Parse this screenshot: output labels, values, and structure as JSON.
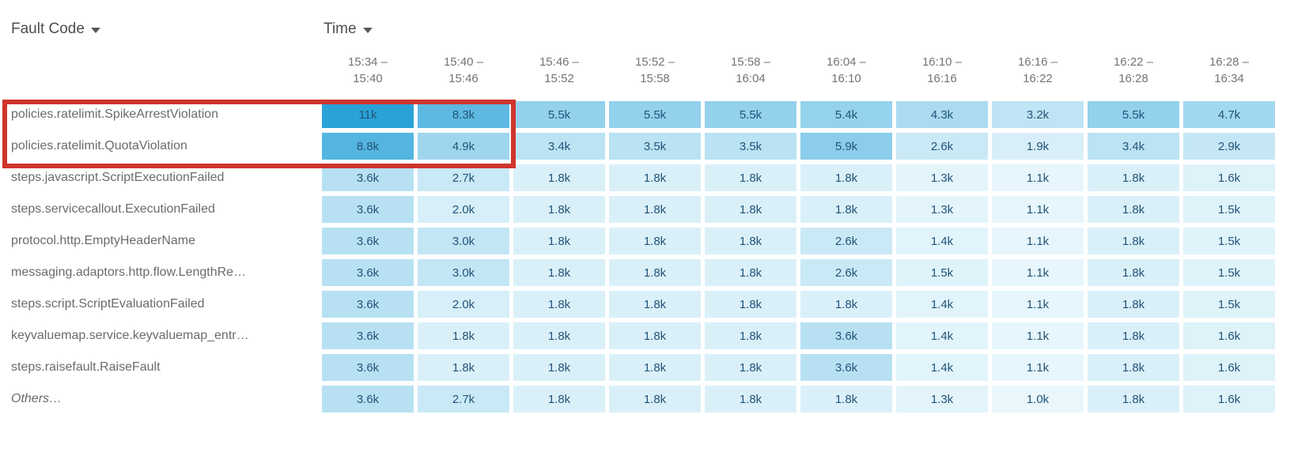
{
  "header": {
    "fault_code_label": "Fault Code",
    "time_label": "Time"
  },
  "chart_data": {
    "type": "heatmap",
    "x_axis_label": "Time",
    "y_axis_label": "Fault Code",
    "columns": [
      "15:34 – 15:40",
      "15:40 – 15:46",
      "15:46 – 15:52",
      "15:52 – 15:58",
      "15:58 – 16:04",
      "16:04 – 16:10",
      "16:10 – 16:16",
      "16:16 – 16:22",
      "16:22 – 16:28",
      "16:28 – 16:34"
    ],
    "rows": [
      {
        "label": "policies.ratelimit.SpikeArrestViolation",
        "italic": false,
        "values": [
          "11k",
          "8.3k",
          "5.5k",
          "5.5k",
          "5.5k",
          "5.4k",
          "4.3k",
          "3.2k",
          "5.5k",
          "4.7k"
        ]
      },
      {
        "label": "policies.ratelimit.QuotaViolation",
        "italic": false,
        "values": [
          "8.8k",
          "4.9k",
          "3.4k",
          "3.5k",
          "3.5k",
          "5.9k",
          "2.6k",
          "1.9k",
          "3.4k",
          "2.9k"
        ]
      },
      {
        "label": "steps.javascript.ScriptExecutionFailed",
        "italic": false,
        "values": [
          "3.6k",
          "2.7k",
          "1.8k",
          "1.8k",
          "1.8k",
          "1.8k",
          "1.3k",
          "1.1k",
          "1.8k",
          "1.6k"
        ]
      },
      {
        "label": "steps.servicecallout.ExecutionFailed",
        "italic": false,
        "values": [
          "3.6k",
          "2.0k",
          "1.8k",
          "1.8k",
          "1.8k",
          "1.8k",
          "1.3k",
          "1.1k",
          "1.8k",
          "1.5k"
        ]
      },
      {
        "label": "protocol.http.EmptyHeaderName",
        "italic": false,
        "values": [
          "3.6k",
          "3.0k",
          "1.8k",
          "1.8k",
          "1.8k",
          "2.6k",
          "1.4k",
          "1.1k",
          "1.8k",
          "1.5k"
        ]
      },
      {
        "label": "messaging.adaptors.http.flow.LengthRe…",
        "italic": false,
        "values": [
          "3.6k",
          "3.0k",
          "1.8k",
          "1.8k",
          "1.8k",
          "2.6k",
          "1.5k",
          "1.1k",
          "1.8k",
          "1.5k"
        ]
      },
      {
        "label": "steps.script.ScriptEvaluationFailed",
        "italic": false,
        "values": [
          "3.6k",
          "2.0k",
          "1.8k",
          "1.8k",
          "1.8k",
          "1.8k",
          "1.4k",
          "1.1k",
          "1.8k",
          "1.5k"
        ]
      },
      {
        "label": "keyvaluemap.service.keyvaluemap_entr…",
        "italic": false,
        "values": [
          "3.6k",
          "1.8k",
          "1.8k",
          "1.8k",
          "1.8k",
          "3.6k",
          "1.4k",
          "1.1k",
          "1.8k",
          "1.6k"
        ]
      },
      {
        "label": "steps.raisefault.RaiseFault",
        "italic": false,
        "values": [
          "3.6k",
          "1.8k",
          "1.8k",
          "1.8k",
          "1.8k",
          "3.6k",
          "1.4k",
          "1.1k",
          "1.8k",
          "1.6k"
        ]
      },
      {
        "label": "Others…",
        "italic": true,
        "values": [
          "3.6k",
          "2.7k",
          "1.8k",
          "1.8k",
          "1.8k",
          "1.8k",
          "1.3k",
          "1.0k",
          "1.8k",
          "1.6k"
        ]
      }
    ],
    "heat_scale": {
      "min_value": 1.0,
      "max_value": 11,
      "min_color": "#E9F7FC",
      "max_color": "#2AA2D8"
    },
    "cell_text_color": "#235478",
    "row_label_color": "#6B6B6B",
    "column_header_color": "#747474",
    "highlight": {
      "color": "#D0342C",
      "rows_covered": [
        0,
        1
      ],
      "columns_covered": [
        0,
        1
      ],
      "includes_row_labels": true
    }
  }
}
